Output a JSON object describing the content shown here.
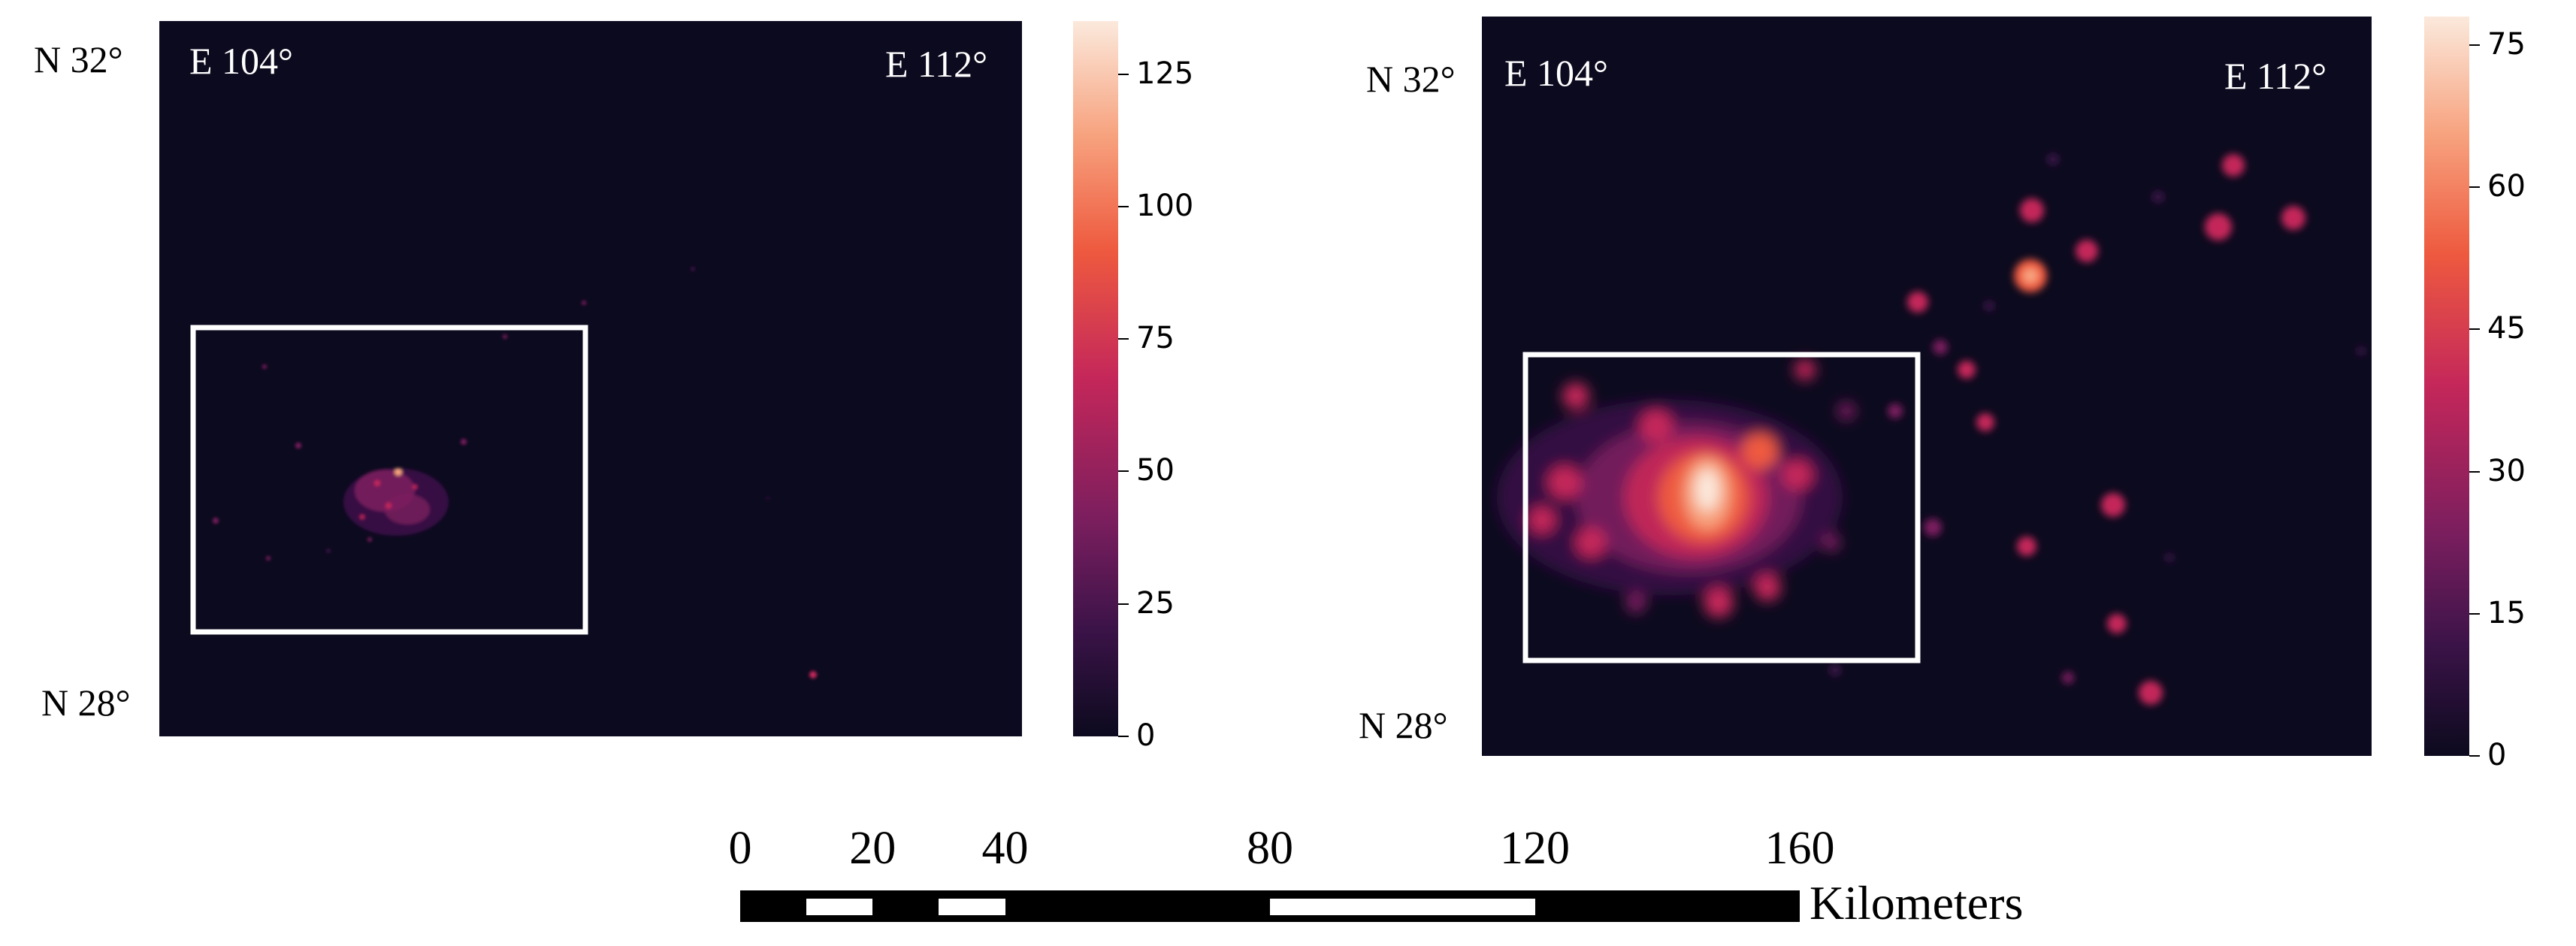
{
  "panels": [
    {
      "lat_top": "N 32°",
      "lat_bottom": "N 28°",
      "lon_left": "E 104°",
      "lon_right": "E 112°",
      "colorbar": {
        "min": 0,
        "max": 135,
        "ticks": [
          "125",
          "100",
          "75",
          "50",
          "25",
          "0"
        ],
        "tick_values": [
          125,
          100,
          75,
          50,
          25,
          0
        ]
      }
    },
    {
      "lat_top": "N 32°",
      "lat_bottom": "N 28°",
      "lon_left": "E 104°",
      "lon_right": "E 112°",
      "colorbar": {
        "min": 0,
        "max": 78,
        "ticks": [
          "75",
          "60",
          "45",
          "30",
          "15",
          "0"
        ],
        "tick_values": [
          75,
          60,
          45,
          30,
          15,
          0
        ]
      }
    }
  ],
  "scale_bar": {
    "labels": [
      "0",
      "20",
      "40",
      "80",
      "120",
      "160"
    ],
    "values": [
      0,
      20,
      40,
      80,
      120,
      160
    ],
    "unit": "Kilometers"
  },
  "colors": {
    "background": "#0c0a1e",
    "colormap": [
      "#0c0a1e",
      "#3b1348",
      "#7a1e5e",
      "#c4275a",
      "#ee5a3f",
      "#f7a27e",
      "#fbe9dc"
    ]
  }
}
